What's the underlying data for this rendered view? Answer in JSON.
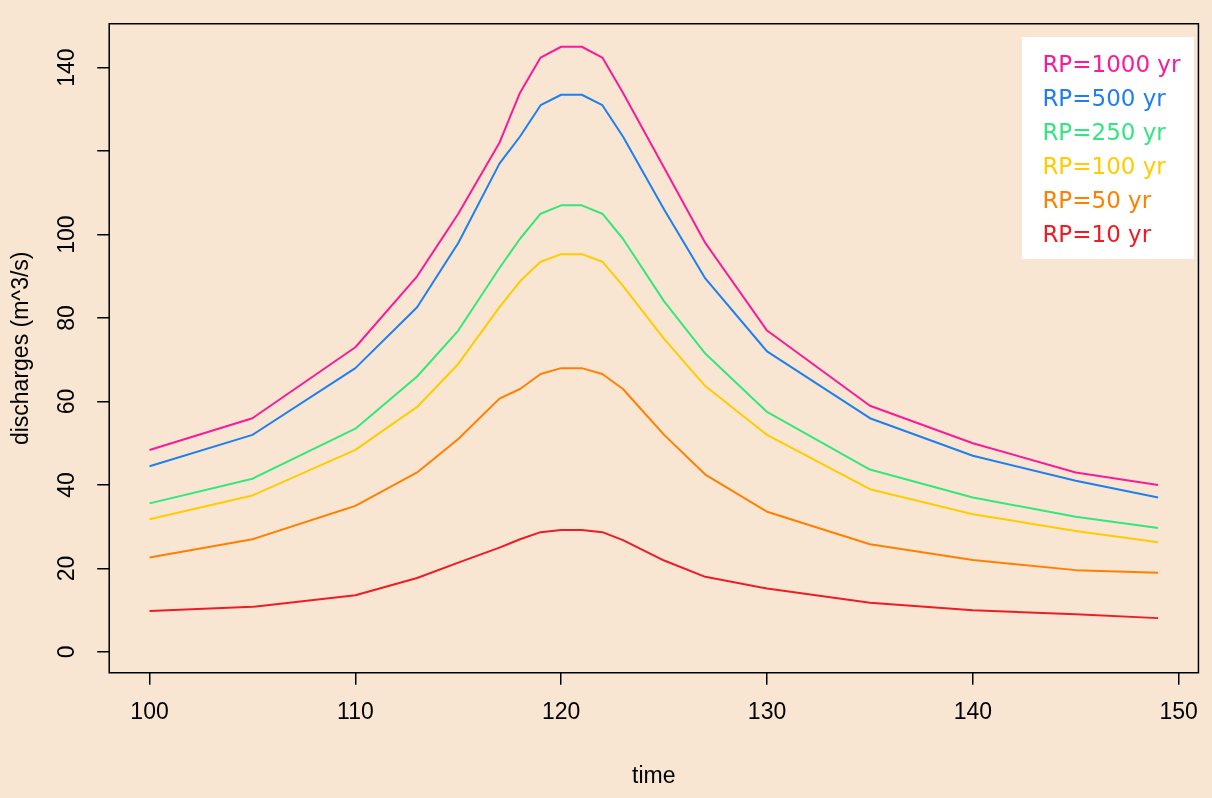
{
  "chart_data": {
    "type": "line",
    "xlabel": "time",
    "ylabel": "discharges (m^3/s)",
    "x": [
      100,
      105,
      110,
      113,
      115,
      117,
      118,
      119,
      120,
      121,
      122,
      123,
      125,
      127,
      130,
      135,
      140,
      145,
      149
    ],
    "series": [
      {
        "name": "RP=1000 yr",
        "color": "#f81b9a",
        "values": [
          48.4,
          56,
          73,
          90,
          105,
          122,
          134,
          142.4,
          145,
          145,
          142.4,
          134,
          116,
          98,
          77,
          59,
          50,
          43,
          40
        ]
      },
      {
        "name": "RP=500 yr",
        "color": "#1f7ff0",
        "values": [
          44.5,
          52,
          68,
          82.6,
          98,
          117,
          123.5,
          131,
          133.5,
          133.5,
          131,
          123.5,
          106,
          89.5,
          72,
          56,
          47,
          41,
          37
        ]
      },
      {
        "name": "RP=250 yr",
        "color": "#33e67f",
        "values": [
          35.6,
          41.5,
          53.5,
          66,
          77,
          92,
          99,
          105,
          107,
          107,
          105,
          99,
          84,
          71.5,
          57.5,
          43.7,
          37,
          32.4,
          29.7
        ]
      },
      {
        "name": "RP=100 yr",
        "color": "#ffcc00",
        "values": [
          31.8,
          37.5,
          48.4,
          58.7,
          69,
          82.6,
          88.8,
          93.5,
          95.3,
          95.3,
          93.5,
          87.7,
          75,
          63.7,
          52,
          39,
          33,
          29,
          26.3
        ]
      },
      {
        "name": "RP=50 yr",
        "color": "#ff8000",
        "values": [
          22.6,
          27,
          35,
          43,
          51,
          60.7,
          63,
          66.6,
          68,
          68,
          66.6,
          63,
          52,
          42.5,
          33.6,
          25.8,
          22,
          19.6,
          19
        ]
      },
      {
        "name": "RP=10 yr",
        "color": "#ee1c25",
        "values": [
          9.8,
          10.8,
          13.6,
          17.7,
          21.4,
          25,
          27,
          28.7,
          29.2,
          29.2,
          28.7,
          26.8,
          21.9,
          18,
          15.2,
          11.8,
          10,
          9,
          8.1
        ]
      }
    ],
    "xlim": [
      98.04,
      150.96
    ],
    "xticks": [
      100,
      110,
      120,
      130,
      140,
      150
    ],
    "ylim": [
      -5,
      150.5
    ],
    "yticks": [
      0,
      20,
      40,
      60,
      80,
      100,
      {
        "value": 120,
        "label": null
      },
      140
    ],
    "grid": false,
    "legend": "top right",
    "marker": "none",
    "line_style": "solid"
  }
}
